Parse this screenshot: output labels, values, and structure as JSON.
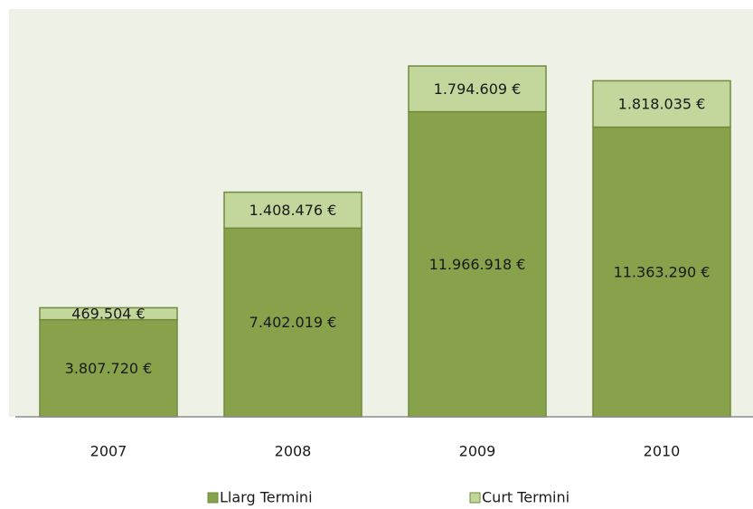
{
  "chart_data": {
    "type": "stacked_bar",
    "categories": [
      "2007",
      "2008",
      "2009",
      "2010"
    ],
    "series": [
      {
        "name": "Llarg Termini",
        "color": "#87a24b",
        "values": [
          3807720,
          7402019,
          11966918,
          11363290
        ],
        "value_labels": [
          "3.807.720 €",
          "7.402.019 €",
          "11.966.918 €",
          "11.363.290 €"
        ]
      },
      {
        "name": "Curt Termini",
        "color": "#c3d69b",
        "values": [
          469504,
          1408476,
          1794609,
          1818035
        ],
        "value_labels": [
          "469.504 €",
          "1.408.476 €",
          "1.794.609 €",
          "1.818.035 €"
        ]
      }
    ],
    "legend": "bottom"
  }
}
